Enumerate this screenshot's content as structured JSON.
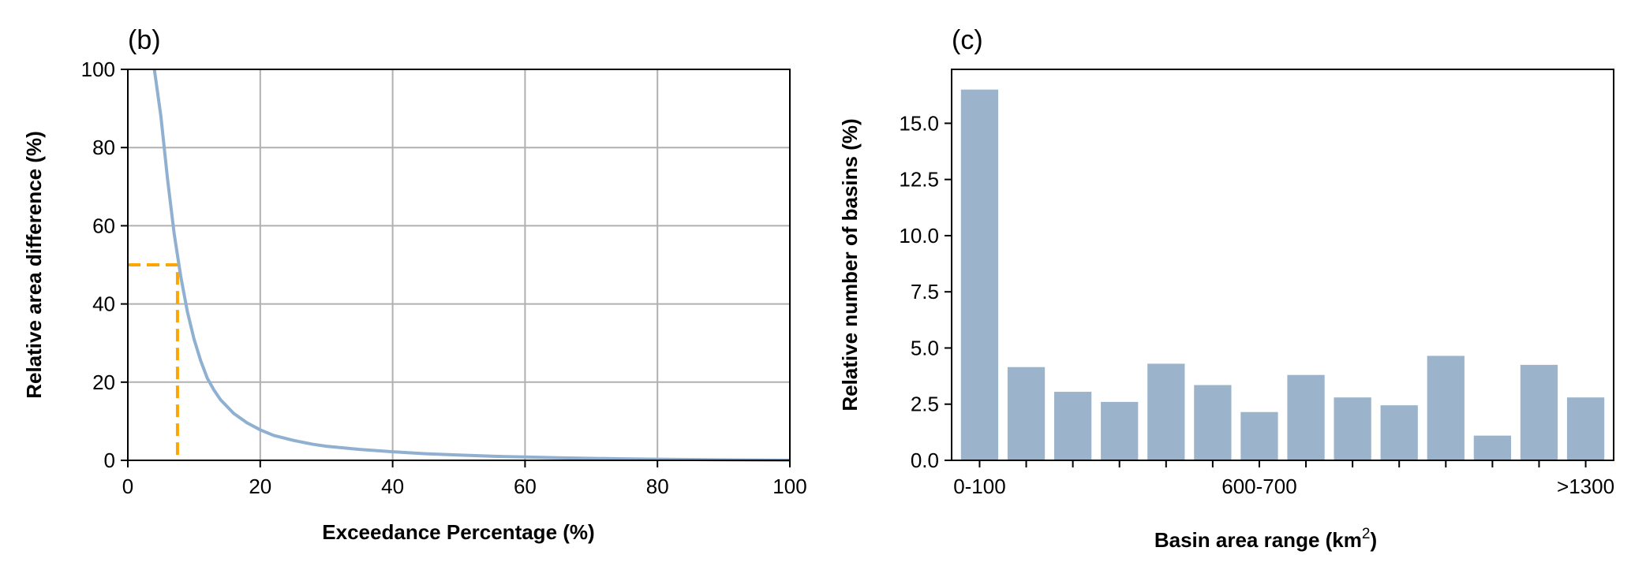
{
  "chart_data": [
    {
      "panel_label": "(b)",
      "type": "line",
      "xlabel": "Exceedance Percentage (%)",
      "ylabel": "Relative area difference (%)",
      "xlim": [
        0,
        100
      ],
      "ylim": [
        0,
        100
      ],
      "xticks": [
        "0",
        "20",
        "40",
        "60",
        "80",
        "100"
      ],
      "yticks": [
        "0",
        "20",
        "40",
        "60",
        "80",
        "100"
      ],
      "grid": true,
      "series": [
        {
          "color": "#8fb0d0",
          "x": [
            4,
            5,
            6,
            7,
            8,
            9,
            10,
            11,
            12,
            13,
            14,
            16,
            18,
            20,
            22,
            25,
            28,
            30,
            35,
            40,
            45,
            50,
            55,
            60,
            65,
            70,
            75,
            80,
            90,
            100
          ],
          "y": [
            100,
            88,
            72,
            58,
            47,
            38,
            31,
            25.5,
            21,
            18,
            15.5,
            12,
            9.6,
            7.8,
            6.4,
            5.1,
            4.1,
            3.6,
            2.8,
            2.2,
            1.7,
            1.35,
            1.05,
            0.85,
            0.65,
            0.5,
            0.38,
            0.28,
            0.12,
            0.02
          ]
        }
      ],
      "reference_lines": {
        "color": "#ffa500",
        "style": "dashed",
        "x": 7.5,
        "y": 50
      }
    },
    {
      "panel_label": "(c)",
      "type": "bar",
      "xlabel": "Basin area range (km",
      "xlabel_sup": "2",
      "xlabel_end": ")",
      "ylabel": "Relative number of basins (%)",
      "ylim": [
        0,
        17.4
      ],
      "yticks": [
        "0.0",
        "2.5",
        "5.0",
        "7.5",
        "10.0",
        "12.5",
        "15.0"
      ],
      "ytick_values": [
        0,
        2.5,
        5,
        7.5,
        10,
        12.5,
        15
      ],
      "xtick_labels": [
        "0-100",
        "600-700",
        ">1300"
      ],
      "xtick_label_positions": [
        0,
        6,
        13
      ],
      "bar_color": "#9bb4cc",
      "values": [
        16.5,
        4.15,
        3.05,
        2.6,
        4.3,
        3.35,
        2.15,
        3.8,
        2.8,
        2.45,
        4.65,
        1.1,
        4.25,
        2.8
      ]
    }
  ]
}
